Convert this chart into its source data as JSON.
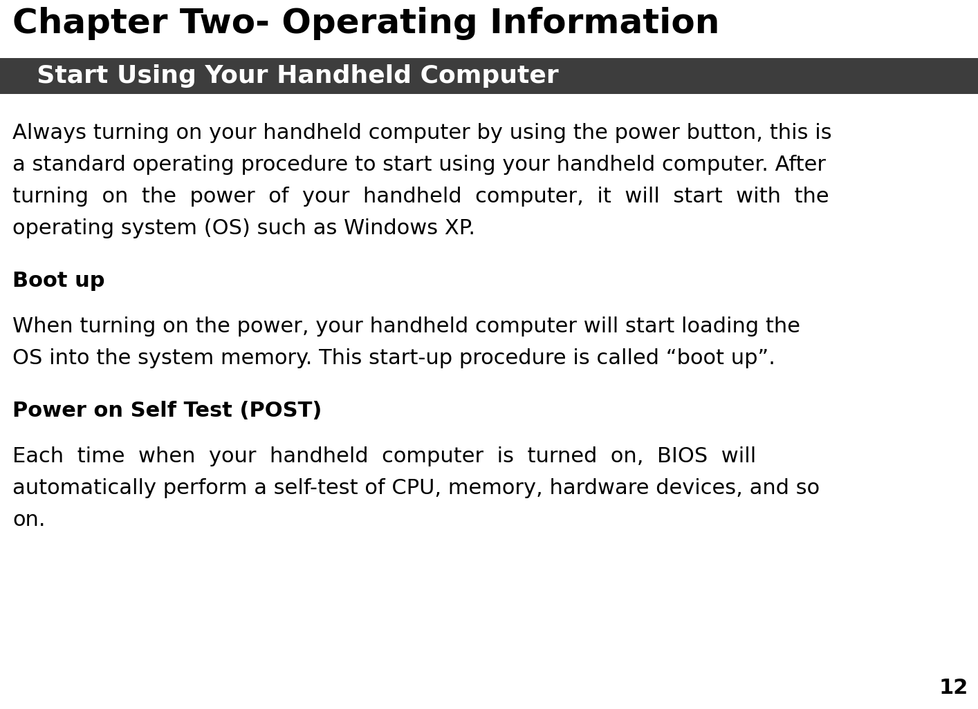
{
  "title": "Chapter Two- Operating Information",
  "section_header": "  Start Using Your Handheld Computer",
  "section_header_bg": "#3d3d3d",
  "section_header_color": "#ffffff",
  "page_number": "12",
  "background_color": "#ffffff",
  "text_color": "#000000",
  "subhead1": "Boot up",
  "subhead2": "Power on Self Test (POST)",
  "title_fontsize": 36,
  "header_fontsize": 26,
  "body_fontsize": 22,
  "subhead_fontsize": 22,
  "page_num_fontsize": 22,
  "para1_lines": [
    "Always turning on your handheld computer by using the power button, this is",
    "a standard operating procedure to start using your handheld computer. After",
    "turning  on  the  power  of  your  handheld  computer,  it  will  start  with  the",
    "operating system (OS) such as Windows XP."
  ],
  "para2_lines": [
    "When turning on the power, your handheld computer will start loading the",
    "OS into the system memory. This start-up procedure is called “boot up”."
  ],
  "para3_lines": [
    "Each  time  when  your  handheld  computer  is  turned  on,  BIOS  will",
    "automatically perform a self-test of CPU, memory, hardware devices, and so",
    "on."
  ]
}
